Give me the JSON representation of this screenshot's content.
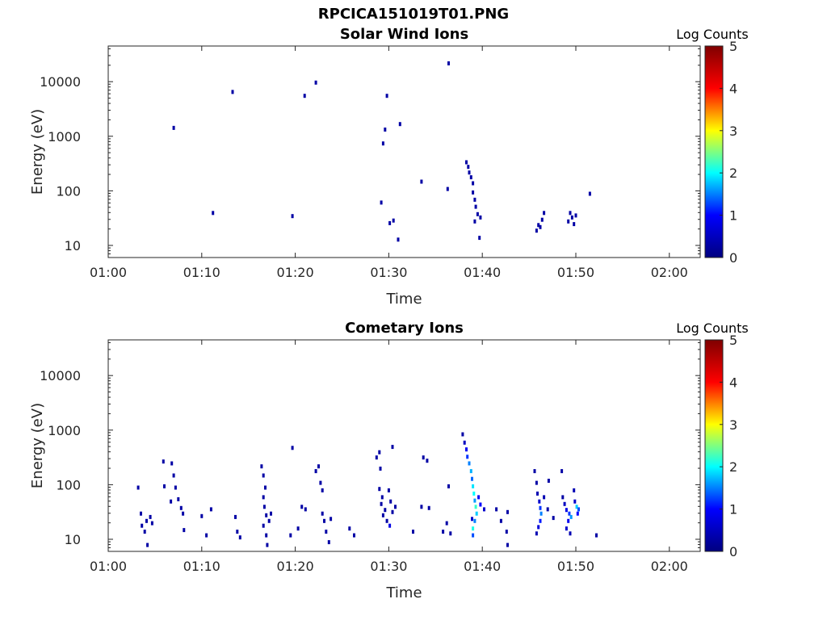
{
  "figure": {
    "title": "RPCICA151019T01.PNG"
  },
  "colormap": {
    "name": "jet",
    "stops": [
      "#00007f",
      "#0000ff",
      "#00ffff",
      "#ffff00",
      "#ff0000",
      "#7f0000"
    ]
  },
  "chart_data": [
    {
      "type": "heatmap",
      "title": "Solar Wind Ions",
      "xlabel": "Time",
      "ylabel": "Energy (eV)",
      "x_ticks": [
        "01:00",
        "01:10",
        "01:20",
        "01:30",
        "01:40",
        "01:50",
        "02:00"
      ],
      "x_range_minutes": [
        0,
        63.3
      ],
      "y_scale": "log",
      "y_ticks": [
        10,
        100,
        1000,
        10000
      ],
      "y_range": [
        6,
        45000
      ],
      "colorbar": {
        "label": "Log Counts",
        "ticks": [
          0,
          1,
          2,
          3,
          4,
          5
        ],
        "range": [
          0,
          5
        ]
      },
      "points": [
        {
          "t": 7.0,
          "e": 1450,
          "v": 0.3
        },
        {
          "t": 11.2,
          "e": 40,
          "v": 0.3
        },
        {
          "t": 13.3,
          "e": 6600,
          "v": 0.3
        },
        {
          "t": 19.7,
          "e": 35,
          "v": 0.3
        },
        {
          "t": 21.0,
          "e": 5600,
          "v": 0.3
        },
        {
          "t": 22.2,
          "e": 9800,
          "v": 0.3
        },
        {
          "t": 29.2,
          "e": 62,
          "v": 0.3
        },
        {
          "t": 29.4,
          "e": 750,
          "v": 0.3
        },
        {
          "t": 29.6,
          "e": 1350,
          "v": 0.3
        },
        {
          "t": 29.8,
          "e": 5600,
          "v": 0.3
        },
        {
          "t": 30.1,
          "e": 26,
          "v": 0.3
        },
        {
          "t": 30.5,
          "e": 29,
          "v": 0.3
        },
        {
          "t": 31.0,
          "e": 13,
          "v": 0.3
        },
        {
          "t": 31.2,
          "e": 1700,
          "v": 0.3
        },
        {
          "t": 33.5,
          "e": 150,
          "v": 0.3
        },
        {
          "t": 36.3,
          "e": 110,
          "v": 0.3
        },
        {
          "t": 36.4,
          "e": 22000,
          "v": 0.3
        },
        {
          "t": 38.3,
          "e": 340,
          "v": 0.3
        },
        {
          "t": 38.5,
          "e": 280,
          "v": 0.3
        },
        {
          "t": 38.6,
          "e": 220,
          "v": 0.3
        },
        {
          "t": 38.8,
          "e": 180,
          "v": 0.3
        },
        {
          "t": 39.0,
          "e": 140,
          "v": 0.3
        },
        {
          "t": 39.0,
          "e": 95,
          "v": 0.3
        },
        {
          "t": 39.2,
          "e": 70,
          "v": 0.3
        },
        {
          "t": 39.3,
          "e": 52,
          "v": 0.3
        },
        {
          "t": 39.5,
          "e": 38,
          "v": 0.3
        },
        {
          "t": 39.2,
          "e": 28,
          "v": 0.3
        },
        {
          "t": 39.7,
          "e": 14,
          "v": 0.3
        },
        {
          "t": 39.8,
          "e": 33,
          "v": 0.3
        },
        {
          "t": 45.8,
          "e": 19,
          "v": 0.3
        },
        {
          "t": 46.0,
          "e": 24,
          "v": 0.3
        },
        {
          "t": 46.2,
          "e": 22,
          "v": 0.3
        },
        {
          "t": 46.4,
          "e": 30,
          "v": 0.3
        },
        {
          "t": 46.6,
          "e": 40,
          "v": 0.3
        },
        {
          "t": 49.2,
          "e": 28,
          "v": 0.3
        },
        {
          "t": 49.4,
          "e": 40,
          "v": 0.3
        },
        {
          "t": 49.6,
          "e": 33,
          "v": 0.3
        },
        {
          "t": 49.8,
          "e": 25,
          "v": 0.3
        },
        {
          "t": 50.0,
          "e": 36,
          "v": 0.3
        },
        {
          "t": 51.5,
          "e": 90,
          "v": 0.3
        }
      ]
    },
    {
      "type": "heatmap",
      "title": "Cometary Ions",
      "xlabel": "Time",
      "ylabel": "Energy (eV)",
      "x_ticks": [
        "01:00",
        "01:10",
        "01:20",
        "01:30",
        "01:40",
        "01:50",
        "02:00"
      ],
      "x_range_minutes": [
        0,
        63.3
      ],
      "y_scale": "log",
      "y_ticks": [
        10,
        100,
        1000,
        10000
      ],
      "y_range": [
        6,
        45000
      ],
      "colorbar": {
        "label": "Log Counts",
        "ticks": [
          0,
          1,
          2,
          3,
          4,
          5
        ],
        "range": [
          0,
          5
        ]
      },
      "points": [
        {
          "t": 3.2,
          "e": 90,
          "v": 0.3
        },
        {
          "t": 3.5,
          "e": 30,
          "v": 0.3
        },
        {
          "t": 3.6,
          "e": 18,
          "v": 0.3
        },
        {
          "t": 3.9,
          "e": 14,
          "v": 0.3
        },
        {
          "t": 4.1,
          "e": 22,
          "v": 0.3
        },
        {
          "t": 4.2,
          "e": 8,
          "v": 0.3
        },
        {
          "t": 4.5,
          "e": 26,
          "v": 0.3
        },
        {
          "t": 4.7,
          "e": 20,
          "v": 0.3
        },
        {
          "t": 5.9,
          "e": 270,
          "v": 0.3
        },
        {
          "t": 6.0,
          "e": 95,
          "v": 0.3
        },
        {
          "t": 6.8,
          "e": 250,
          "v": 0.3
        },
        {
          "t": 7.0,
          "e": 150,
          "v": 0.3
        },
        {
          "t": 6.7,
          "e": 50,
          "v": 0.3
        },
        {
          "t": 7.2,
          "e": 90,
          "v": 0.3
        },
        {
          "t": 7.5,
          "e": 55,
          "v": 0.3
        },
        {
          "t": 7.8,
          "e": 38,
          "v": 0.3
        },
        {
          "t": 8.0,
          "e": 30,
          "v": 0.3
        },
        {
          "t": 8.1,
          "e": 15,
          "v": 0.3
        },
        {
          "t": 10.0,
          "e": 27,
          "v": 0.3
        },
        {
          "t": 11.0,
          "e": 36,
          "v": 0.3
        },
        {
          "t": 10.5,
          "e": 12,
          "v": 0.3
        },
        {
          "t": 13.6,
          "e": 26,
          "v": 0.3
        },
        {
          "t": 13.8,
          "e": 14,
          "v": 0.3
        },
        {
          "t": 14.1,
          "e": 11,
          "v": 0.3
        },
        {
          "t": 16.4,
          "e": 220,
          "v": 0.3
        },
        {
          "t": 16.6,
          "e": 150,
          "v": 0.3
        },
        {
          "t": 16.8,
          "e": 90,
          "v": 0.3
        },
        {
          "t": 16.6,
          "e": 60,
          "v": 0.3
        },
        {
          "t": 16.7,
          "e": 40,
          "v": 0.3
        },
        {
          "t": 16.9,
          "e": 28,
          "v": 0.3
        },
        {
          "t": 16.6,
          "e": 18,
          "v": 0.3
        },
        {
          "t": 16.9,
          "e": 12,
          "v": 0.3
        },
        {
          "t": 17.0,
          "e": 8,
          "v": 0.3
        },
        {
          "t": 17.4,
          "e": 30,
          "v": 0.3
        },
        {
          "t": 17.2,
          "e": 22,
          "v": 0.3
        },
        {
          "t": 19.7,
          "e": 480,
          "v": 0.3
        },
        {
          "t": 19.5,
          "e": 12,
          "v": 0.3
        },
        {
          "t": 20.3,
          "e": 16,
          "v": 0.3
        },
        {
          "t": 20.7,
          "e": 40,
          "v": 0.3
        },
        {
          "t": 21.1,
          "e": 36,
          "v": 0.3
        },
        {
          "t": 22.2,
          "e": 180,
          "v": 0.3
        },
        {
          "t": 22.5,
          "e": 220,
          "v": 0.3
        },
        {
          "t": 22.7,
          "e": 110,
          "v": 0.3
        },
        {
          "t": 22.9,
          "e": 80,
          "v": 0.3
        },
        {
          "t": 22.9,
          "e": 30,
          "v": 0.3
        },
        {
          "t": 23.1,
          "e": 22,
          "v": 0.3
        },
        {
          "t": 23.3,
          "e": 14,
          "v": 0.3
        },
        {
          "t": 23.6,
          "e": 9,
          "v": 0.3
        },
        {
          "t": 23.8,
          "e": 24,
          "v": 0.3
        },
        {
          "t": 25.8,
          "e": 16,
          "v": 0.3
        },
        {
          "t": 26.3,
          "e": 12,
          "v": 0.3
        },
        {
          "t": 28.7,
          "e": 320,
          "v": 0.3
        },
        {
          "t": 29.0,
          "e": 400,
          "v": 0.3
        },
        {
          "t": 29.1,
          "e": 200,
          "v": 0.3
        },
        {
          "t": 29.0,
          "e": 85,
          "v": 0.3
        },
        {
          "t": 29.3,
          "e": 60,
          "v": 0.3
        },
        {
          "t": 29.2,
          "e": 45,
          "v": 0.3
        },
        {
          "t": 29.6,
          "e": 35,
          "v": 0.3
        },
        {
          "t": 29.4,
          "e": 28,
          "v": 0.3
        },
        {
          "t": 29.8,
          "e": 22,
          "v": 0.3
        },
        {
          "t": 30.0,
          "e": 80,
          "v": 0.3
        },
        {
          "t": 30.2,
          "e": 50,
          "v": 0.3
        },
        {
          "t": 30.4,
          "e": 32,
          "v": 0.3
        },
        {
          "t": 30.1,
          "e": 18,
          "v": 0.8
        },
        {
          "t": 30.4,
          "e": 500,
          "v": 0.3
        },
        {
          "t": 30.7,
          "e": 40,
          "v": 0.3
        },
        {
          "t": 32.6,
          "e": 14,
          "v": 0.3
        },
        {
          "t": 33.5,
          "e": 40,
          "v": 0.3
        },
        {
          "t": 33.7,
          "e": 320,
          "v": 0.3
        },
        {
          "t": 34.1,
          "e": 280,
          "v": 0.3
        },
        {
          "t": 34.3,
          "e": 38,
          "v": 0.3
        },
        {
          "t": 35.8,
          "e": 14,
          "v": 0.3
        },
        {
          "t": 36.2,
          "e": 20,
          "v": 0.3
        },
        {
          "t": 36.4,
          "e": 95,
          "v": 0.3
        },
        {
          "t": 36.6,
          "e": 13,
          "v": 0.3
        },
        {
          "t": 37.9,
          "e": 850,
          "v": 0.3
        },
        {
          "t": 38.1,
          "e": 600,
          "v": 0.5
        },
        {
          "t": 38.3,
          "e": 450,
          "v": 0.9
        },
        {
          "t": 38.4,
          "e": 330,
          "v": 1.2
        },
        {
          "t": 38.6,
          "e": 250,
          "v": 1.5
        },
        {
          "t": 38.8,
          "e": 180,
          "v": 1.7
        },
        {
          "t": 38.9,
          "e": 130,
          "v": 1.4
        },
        {
          "t": 39.0,
          "e": 95,
          "v": 1.9
        },
        {
          "t": 39.1,
          "e": 70,
          "v": 2.0
        },
        {
          "t": 39.2,
          "e": 52,
          "v": 1.6
        },
        {
          "t": 39.3,
          "e": 40,
          "v": 2.2
        },
        {
          "t": 39.4,
          "e": 30,
          "v": 1.8
        },
        {
          "t": 39.2,
          "e": 22,
          "v": 1.5
        },
        {
          "t": 39.0,
          "e": 16,
          "v": 2.1
        },
        {
          "t": 39.0,
          "e": 12,
          "v": 1.3
        },
        {
          "t": 38.9,
          "e": 24,
          "v": 0.6
        },
        {
          "t": 39.6,
          "e": 60,
          "v": 0.9
        },
        {
          "t": 39.8,
          "e": 44,
          "v": 1.0
        },
        {
          "t": 40.2,
          "e": 36,
          "v": 0.6
        },
        {
          "t": 41.5,
          "e": 36,
          "v": 0.3
        },
        {
          "t": 42.0,
          "e": 22,
          "v": 0.3
        },
        {
          "t": 42.7,
          "e": 32,
          "v": 0.3
        },
        {
          "t": 42.6,
          "e": 14,
          "v": 0.3
        },
        {
          "t": 42.7,
          "e": 8,
          "v": 0.3
        },
        {
          "t": 45.6,
          "e": 180,
          "v": 0.3
        },
        {
          "t": 45.8,
          "e": 110,
          "v": 0.3
        },
        {
          "t": 45.9,
          "e": 70,
          "v": 0.4
        },
        {
          "t": 46.1,
          "e": 50,
          "v": 0.6
        },
        {
          "t": 46.2,
          "e": 38,
          "v": 1.2
        },
        {
          "t": 46.3,
          "e": 30,
          "v": 1.5
        },
        {
          "t": 46.2,
          "e": 22,
          "v": 1.1
        },
        {
          "t": 46.0,
          "e": 17,
          "v": 0.7
        },
        {
          "t": 45.8,
          "e": 13,
          "v": 0.4
        },
        {
          "t": 46.6,
          "e": 60,
          "v": 0.4
        },
        {
          "t": 47.0,
          "e": 36,
          "v": 0.3
        },
        {
          "t": 47.1,
          "e": 120,
          "v": 0.3
        },
        {
          "t": 47.6,
          "e": 25,
          "v": 0.3
        },
        {
          "t": 48.5,
          "e": 180,
          "v": 0.3
        },
        {
          "t": 48.6,
          "e": 60,
          "v": 0.3
        },
        {
          "t": 48.8,
          "e": 45,
          "v": 0.5
        },
        {
          "t": 49.0,
          "e": 35,
          "v": 0.8
        },
        {
          "t": 49.3,
          "e": 30,
          "v": 1.2
        },
        {
          "t": 49.5,
          "e": 26,
          "v": 1.6
        },
        {
          "t": 49.2,
          "e": 22,
          "v": 0.9
        },
        {
          "t": 49.0,
          "e": 16,
          "v": 0.6
        },
        {
          "t": 49.4,
          "e": 13,
          "v": 0.4
        },
        {
          "t": 49.8,
          "e": 80,
          "v": 0.4
        },
        {
          "t": 49.9,
          "e": 50,
          "v": 0.6
        },
        {
          "t": 50.1,
          "e": 40,
          "v": 1.8
        },
        {
          "t": 50.3,
          "e": 36,
          "v": 1.3
        },
        {
          "t": 50.2,
          "e": 30,
          "v": 1.0
        },
        {
          "t": 52.2,
          "e": 12,
          "v": 0.3
        }
      ]
    }
  ]
}
